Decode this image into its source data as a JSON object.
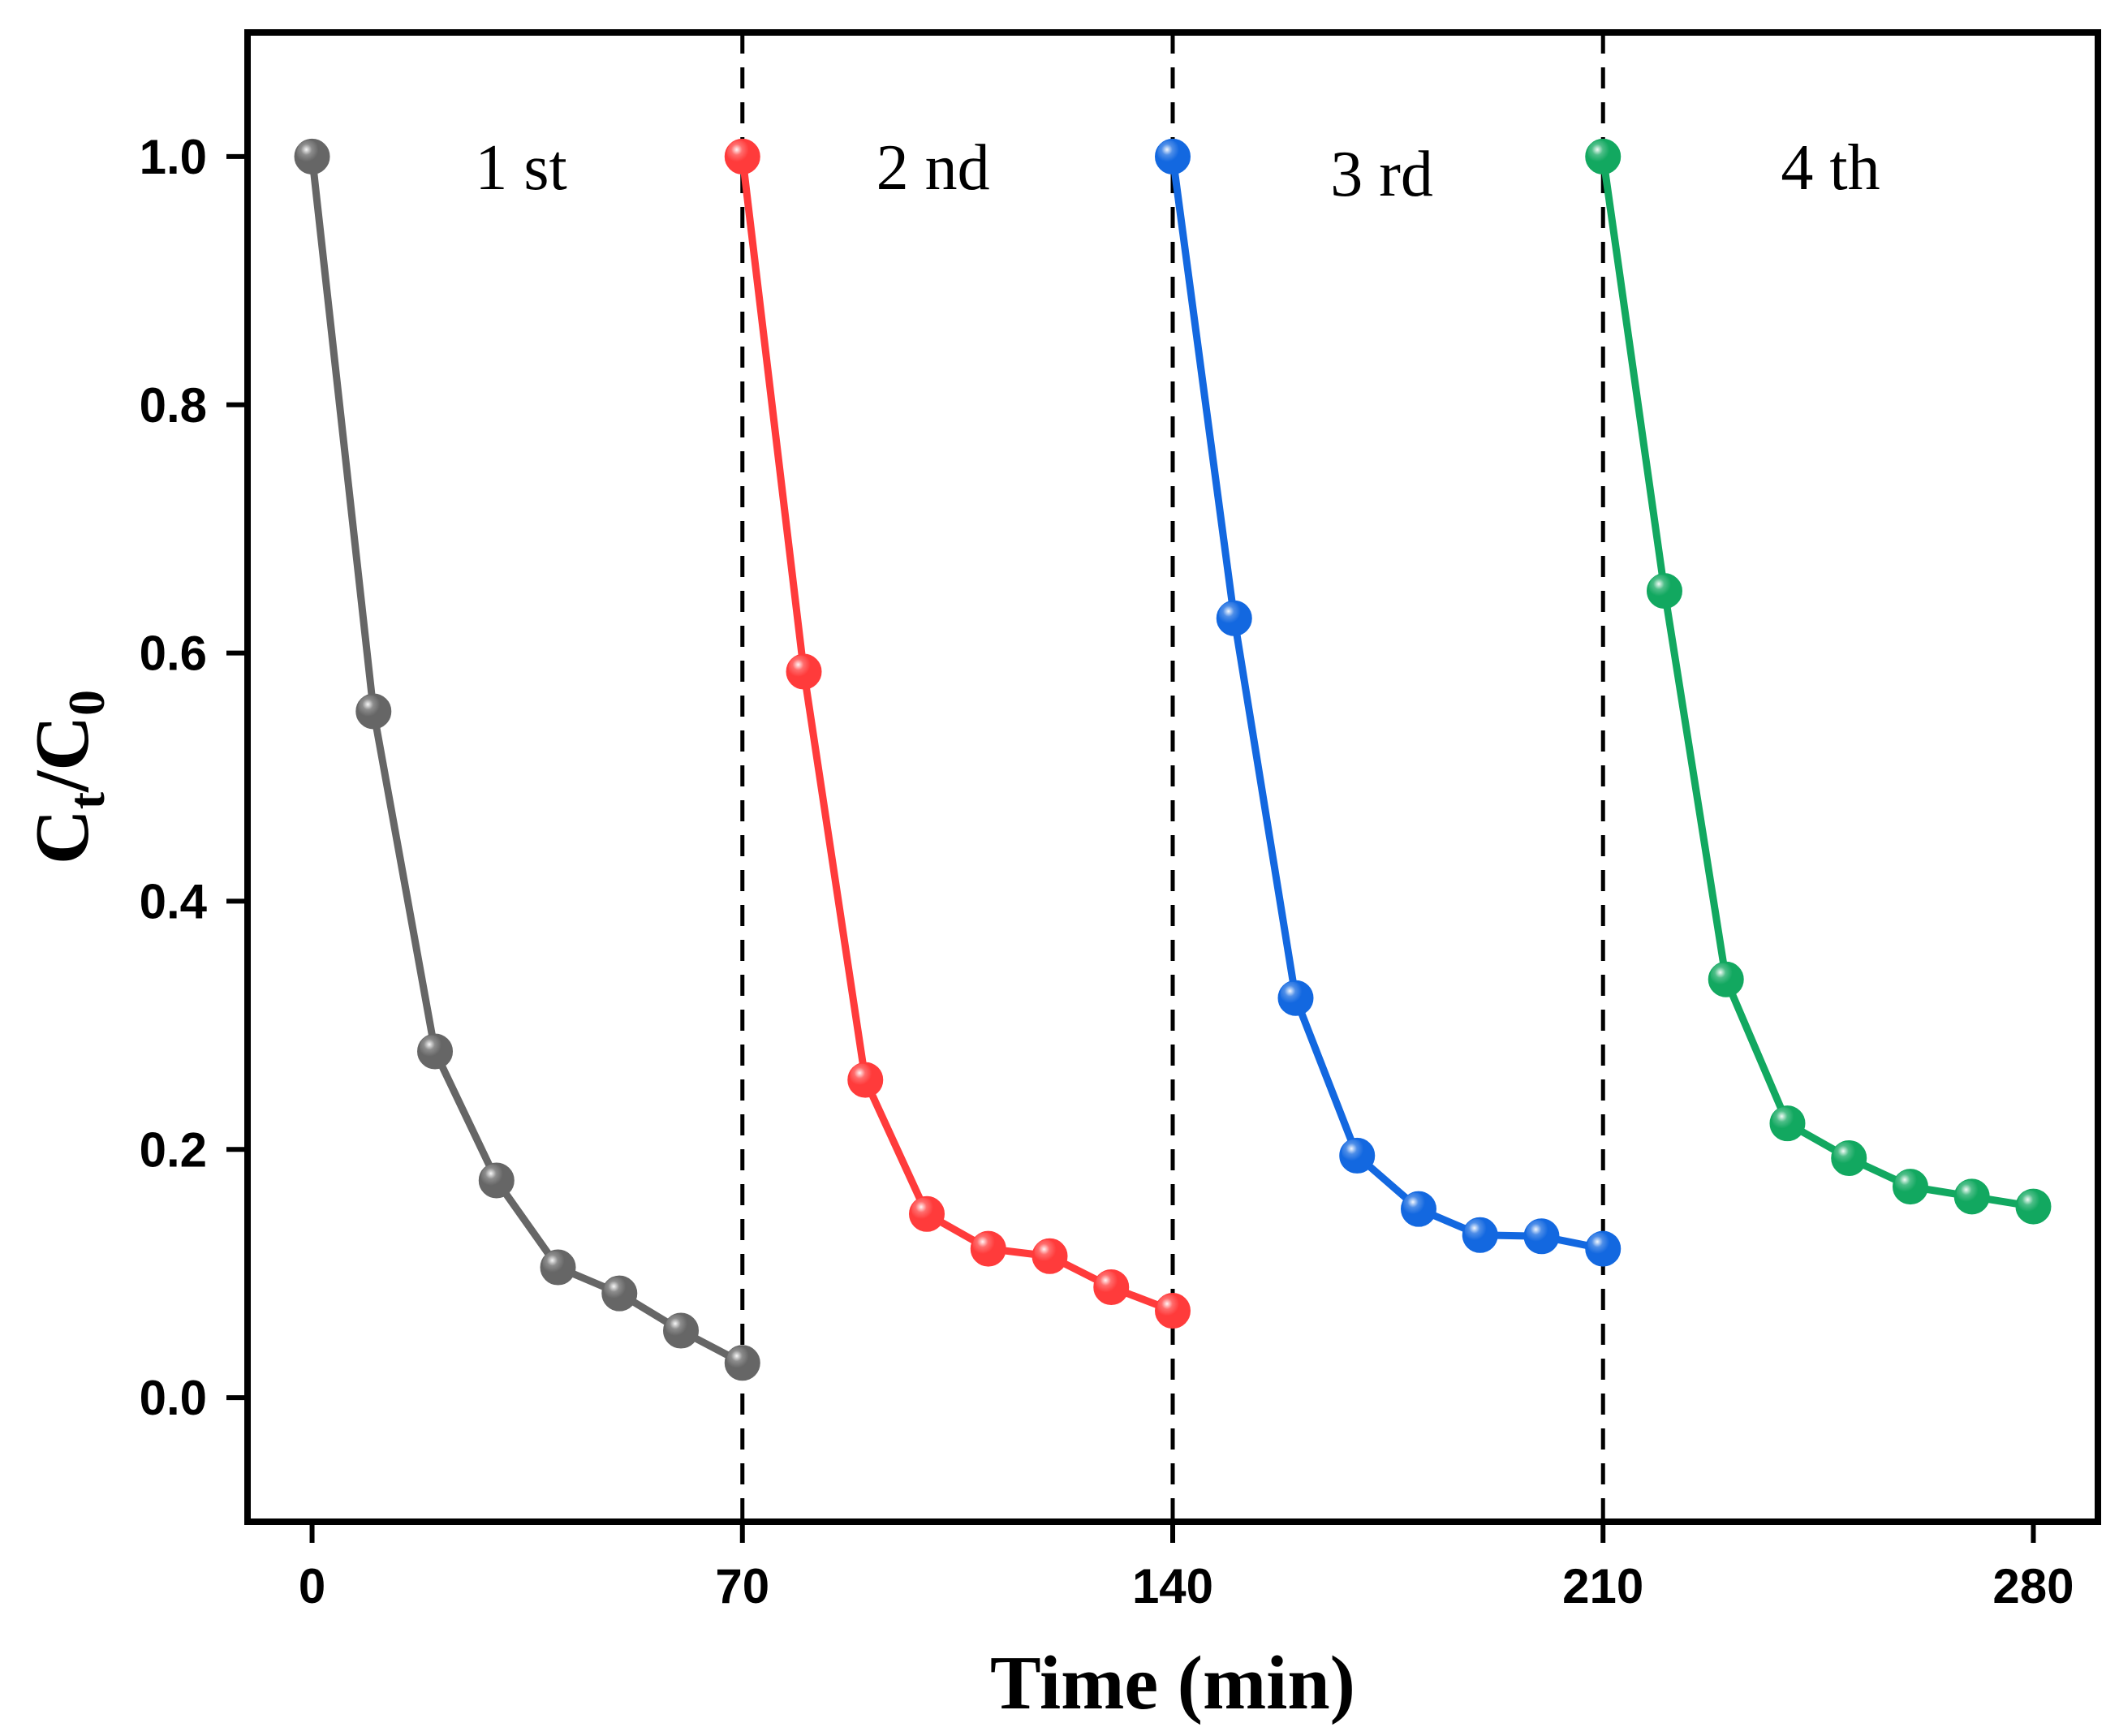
{
  "chart_data": {
    "type": "line",
    "title": "",
    "xlabel": "Time (min)",
    "ylabel": {
      "main": "C",
      "sub1": "t",
      "sep": "/C",
      "sub2": "0"
    },
    "xlim": [
      -10.5,
      290.5
    ],
    "ylim": [
      -0.1,
      1.1
    ],
    "xticks": [
      0,
      70,
      140,
      210,
      280
    ],
    "yticks": [
      0.0,
      0.2,
      0.4,
      0.6,
      0.8,
      1.0
    ],
    "xtick_labels": [
      "0",
      "70",
      "140",
      "210",
      "280"
    ],
    "ytick_labels": [
      "0.0",
      "0.2",
      "0.4",
      "0.6",
      "0.8",
      "1.0"
    ],
    "cycle_dividers": [
      70,
      140,
      210
    ],
    "grid": false,
    "series": [
      {
        "name": "1 st",
        "color": "#666666",
        "x": [
          0,
          10,
          20,
          30,
          40,
          50,
          60,
          70
        ],
        "y": [
          1.0,
          0.553,
          0.279,
          0.175,
          0.105,
          0.084,
          0.054,
          0.028
        ]
      },
      {
        "name": "2 nd",
        "color": "#ff3b3b",
        "x": [
          70,
          80,
          90,
          100,
          110,
          120,
          130,
          140
        ],
        "y": [
          1.0,
          0.585,
          0.256,
          0.148,
          0.12,
          0.114,
          0.089,
          0.07
        ]
      },
      {
        "name": "3 rd",
        "color": "#1368e0",
        "x": [
          140,
          150,
          160,
          170,
          180,
          190,
          200,
          210
        ],
        "y": [
          1.0,
          0.628,
          0.322,
          0.195,
          0.152,
          0.131,
          0.13,
          0.12
        ]
      },
      {
        "name": "4 th",
        "color": "#12a860",
        "x": [
          210,
          220,
          230,
          240,
          250,
          260,
          270,
          280
        ],
        "y": [
          1.0,
          0.65,
          0.337,
          0.221,
          0.193,
          0.17,
          0.162,
          0.154
        ]
      }
    ],
    "annotations": [
      {
        "text": "1 st",
        "x": 34,
        "y": 0.99
      },
      {
        "text": "2 nd",
        "x": 101,
        "y": 0.99
      },
      {
        "text": "3 rd",
        "x": 174,
        "y": 0.985
      },
      {
        "text": "4 th",
        "x": 247,
        "y": 0.99
      }
    ]
  }
}
